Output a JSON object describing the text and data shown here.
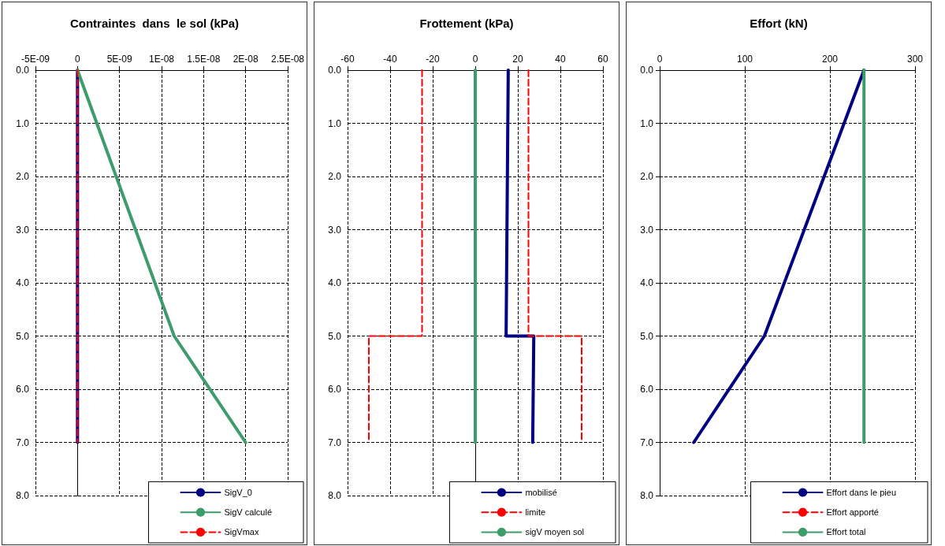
{
  "chart_data": [
    {
      "type": "line",
      "title": "Contraintes  dans  le sol (kPa)",
      "xlim": [
        -5e-09,
        2.5e-08
      ],
      "xticks": [
        {
          "value": -5e-09,
          "label": "-5E-09"
        },
        0,
        {
          "value": 5e-09,
          "label": "5E-09"
        },
        {
          "value": 1e-08,
          "label": "1E-08"
        },
        {
          "value": 1.5e-08,
          "label": "1.5E-08"
        },
        {
          "value": 2e-08,
          "label": "2E-08"
        },
        {
          "value": 2.5e-08,
          "label": "2.5E-08"
        }
      ],
      "ylim": [
        8,
        0
      ],
      "yticks": [
        {
          "value": 0,
          "label": "0.0"
        },
        {
          "value": 1,
          "label": "1.0"
        },
        {
          "value": 2,
          "label": "2.0"
        },
        {
          "value": 3,
          "label": "3.0"
        },
        {
          "value": 4,
          "label": "4.0"
        },
        {
          "value": 5,
          "label": "5.0"
        },
        {
          "value": 6,
          "label": "6.0"
        },
        {
          "value": 7,
          "label": "7.0"
        },
        {
          "value": 8,
          "label": "8.0"
        }
      ],
      "grid": true,
      "legend": "bottom right",
      "marker": "none",
      "series": [
        {
          "name": "SigV_0",
          "color": "#000080",
          "x": [
            0,
            0
          ],
          "values": [
            0,
            7
          ],
          "line_style": "solid"
        },
        {
          "name": "SigV calculé",
          "color": "#3c9c6a",
          "x": [
            0,
            1.15e-08,
            2e-08
          ],
          "values": [
            0,
            5,
            7
          ],
          "line_style": "solid"
        },
        {
          "name": "SigVmax",
          "color": "#ff0000",
          "x": [
            0,
            0
          ],
          "values": [
            0,
            7
          ],
          "line_style": "dashed"
        }
      ]
    },
    {
      "type": "line",
      "title": "Frottement (kPa)",
      "xlim": [
        -60,
        60
      ],
      "xticks": [
        -60,
        -40,
        -20,
        0,
        20,
        40,
        60
      ],
      "ylim": [
        8,
        0
      ],
      "yticks": [
        {
          "value": 0,
          "label": "0.0"
        },
        {
          "value": 1,
          "label": "1.0"
        },
        {
          "value": 2,
          "label": "2.0"
        },
        {
          "value": 3,
          "label": "3.0"
        },
        {
          "value": 4,
          "label": "4.0"
        },
        {
          "value": 5,
          "label": "5.0"
        },
        {
          "value": 6,
          "label": "6.0"
        },
        {
          "value": 7,
          "label": "7.0"
        },
        {
          "value": 8,
          "label": "8.0"
        }
      ],
      "grid": true,
      "legend": "bottom right",
      "marker": "none",
      "series": [
        {
          "name": "mobilisé",
          "color": "#000080",
          "x": [
            15.5,
            14.5,
            27.5,
            27
          ],
          "values": [
            0,
            5,
            5,
            7
          ],
          "line_style": "solid"
        },
        {
          "name": "limite",
          "color": "#ff0000",
          "x": [
            -25,
            -25,
            -50,
            -50,
            null,
            25,
            25,
            50,
            50
          ],
          "values": [
            0,
            5,
            5,
            7,
            null,
            0,
            5,
            5,
            7
          ],
          "line_style": "dashed"
        },
        {
          "name": "sigV moyen sol",
          "color": "#3c9c6a",
          "x": [
            0,
            0
          ],
          "values": [
            0,
            7
          ],
          "line_style": "solid"
        }
      ]
    },
    {
      "type": "line",
      "title": "Effort (kN)",
      "xlim": [
        0,
        300
      ],
      "xticks": [
        0,
        100,
        200,
        300
      ],
      "ylim": [
        8,
        0
      ],
      "yticks": [
        {
          "value": 0,
          "label": "0.0"
        },
        {
          "value": 1,
          "label": "1.0"
        },
        {
          "value": 2,
          "label": "2.0"
        },
        {
          "value": 3,
          "label": "3.0"
        },
        {
          "value": 4,
          "label": "4.0"
        },
        {
          "value": 5,
          "label": "5.0"
        },
        {
          "value": 6,
          "label": "6.0"
        },
        {
          "value": 7,
          "label": "7.0"
        },
        {
          "value": 8,
          "label": "8.0"
        }
      ],
      "grid": true,
      "legend": "bottom right",
      "marker": "none",
      "series": [
        {
          "name": "Effort dans le pieu",
          "color": "#000080",
          "x": [
            240,
            123,
            40
          ],
          "values": [
            0,
            5,
            7
          ],
          "line_style": "solid"
        },
        {
          "name": "Effort apporté",
          "color": "#ff0000",
          "x": [
            null
          ],
          "values": [
            null
          ],
          "line_style": "dashed"
        },
        {
          "name": "Effort total",
          "color": "#3c9c6a",
          "x": [
            240,
            240
          ],
          "values": [
            0,
            7
          ],
          "line_style": "solid"
        }
      ]
    }
  ]
}
